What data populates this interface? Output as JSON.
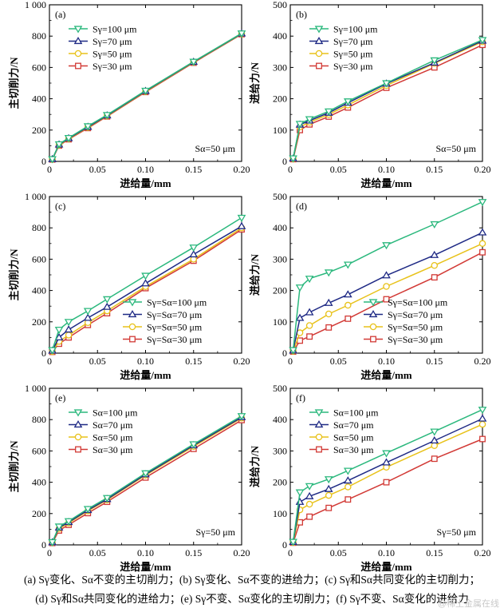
{
  "colors": {
    "s100": "#2bb87d",
    "s70": "#1f2a85",
    "s50": "#e8c21a",
    "s30": "#d23a36",
    "axis": "#000000"
  },
  "chart_data": [
    {
      "id": "a",
      "type": "line",
      "panel_label": "(a)",
      "xlabel": "进给量/mm",
      "ylabel": "主切削力/N",
      "xlim": [
        0,
        0.2
      ],
      "ylim": [
        0,
        1000
      ],
      "xticks": [
        "0",
        "0.05",
        "0.10",
        "0.15",
        "0.20"
      ],
      "yticks": [
        "0",
        "200",
        "400",
        "600",
        "800",
        "1 000"
      ],
      "x": [
        0.003,
        0.01,
        0.02,
        0.04,
        0.06,
        0.1,
        0.15,
        0.2
      ],
      "note": "Sα=50 μm",
      "legend_position": "top-left",
      "series": [
        {
          "key": "s100",
          "name": "Sγ=100 μm",
          "marker": "tri-down",
          "values": [
            15,
            110,
            150,
            225,
            297,
            452,
            637,
            818
          ]
        },
        {
          "key": "s70",
          "name": "Sγ=70 μm",
          "marker": "tri-up",
          "values": [
            14,
            107,
            147,
            220,
            293,
            449,
            635,
            816
          ]
        },
        {
          "key": "s50",
          "name": "Sγ=50 μm",
          "marker": "circle",
          "values": [
            13,
            104,
            144,
            217,
            290,
            446,
            633,
            814
          ]
        },
        {
          "key": "s30",
          "name": "Sγ=30 μm",
          "marker": "square",
          "values": [
            12,
            101,
            141,
            213,
            287,
            443,
            630,
            812
          ]
        }
      ]
    },
    {
      "id": "b",
      "type": "line",
      "panel_label": "(b)",
      "xlabel": "进给量/mm",
      "ylabel": "进给力/N",
      "xlim": [
        0,
        0.2
      ],
      "ylim": [
        0,
        500
      ],
      "xticks": [
        "0",
        "0.05",
        "0.10",
        "0.15",
        "0.20"
      ],
      "yticks": [
        "0",
        "100",
        "200",
        "300",
        "400",
        "500"
      ],
      "x": [
        0.003,
        0.01,
        0.02,
        0.04,
        0.06,
        0.1,
        0.15,
        0.2
      ],
      "note": "Sα=50 μm",
      "legend_position": "top-left",
      "series": [
        {
          "key": "s100",
          "name": "Sγ=100 μm",
          "marker": "tri-down",
          "values": [
            10,
            120,
            135,
            160,
            192,
            250,
            323,
            388
          ]
        },
        {
          "key": "s70",
          "name": "Sγ=70 μm",
          "marker": "tri-up",
          "values": [
            9,
            117,
            130,
            155,
            187,
            248,
            315,
            385
          ]
        },
        {
          "key": "s50",
          "name": "Sγ=50 μm",
          "marker": "circle",
          "values": [
            8,
            110,
            125,
            150,
            180,
            242,
            313,
            382
          ]
        },
        {
          "key": "s30",
          "name": "Sγ=30 μm",
          "marker": "square",
          "values": [
            7,
            100,
            118,
            143,
            172,
            235,
            300,
            372
          ]
        }
      ]
    },
    {
      "id": "c",
      "type": "line",
      "panel_label": "(c)",
      "xlabel": "进给量/mm",
      "ylabel": "主切削力/N",
      "xlim": [
        0,
        0.2
      ],
      "ylim": [
        0,
        1000
      ],
      "xticks": [
        "0",
        "0.05",
        "0.10",
        "0.15",
        "0.20"
      ],
      "yticks": [
        "0",
        "200",
        "400",
        "600",
        "800",
        "1 000"
      ],
      "x": [
        0.003,
        0.01,
        0.02,
        0.04,
        0.06,
        0.1,
        0.15,
        0.2
      ],
      "note": "",
      "legend_position": "bottom-right",
      "series": [
        {
          "key": "s100",
          "name": "Sγ=Sα=100 μm",
          "marker": "tri-down",
          "values": [
            20,
            150,
            200,
            270,
            345,
            495,
            675,
            865
          ]
        },
        {
          "key": "s70",
          "name": "Sγ=Sα=70 μm",
          "marker": "tri-up",
          "values": [
            15,
            100,
            150,
            225,
            295,
            445,
            630,
            810
          ]
        },
        {
          "key": "s50",
          "name": "Sγ=Sα=50 μm",
          "marker": "circle",
          "values": [
            10,
            75,
            115,
            195,
            270,
            425,
            600,
            800
          ]
        },
        {
          "key": "s30",
          "name": "Sγ=Sα=30 μm",
          "marker": "square",
          "values": [
            8,
            60,
            100,
            180,
            255,
            415,
            590,
            790
          ]
        }
      ]
    },
    {
      "id": "d",
      "type": "line",
      "panel_label": "(d)",
      "xlabel": "进给量/mm",
      "ylabel": "进给力/N",
      "xlim": [
        0,
        0.2
      ],
      "ylim": [
        0,
        500
      ],
      "xticks": [
        "0",
        "0.05",
        "0.10",
        "0.15",
        "0.20"
      ],
      "yticks": [
        "0",
        "100",
        "200",
        "300",
        "400",
        "500"
      ],
      "x": [
        0.003,
        0.01,
        0.02,
        0.04,
        0.06,
        0.1,
        0.15,
        0.2
      ],
      "note": "",
      "legend_position": "bottom-right",
      "series": [
        {
          "key": "s100",
          "name": "Sγ=Sα=100 μm",
          "marker": "tri-down",
          "values": [
            10,
            210,
            238,
            258,
            283,
            345,
            412,
            483
          ]
        },
        {
          "key": "s70",
          "name": "Sγ=Sα=70 μm",
          "marker": "tri-up",
          "values": [
            8,
            112,
            130,
            160,
            187,
            248,
            313,
            385
          ]
        },
        {
          "key": "s50",
          "name": "Sγ=Sα=50 μm",
          "marker": "circle",
          "values": [
            6,
            65,
            88,
            125,
            153,
            213,
            280,
            350
          ]
        },
        {
          "key": "s30",
          "name": "Sγ=Sα=30 μm",
          "marker": "square",
          "values": [
            5,
            40,
            53,
            82,
            110,
            172,
            242,
            322
          ]
        }
      ]
    },
    {
      "id": "e",
      "type": "line",
      "panel_label": "(e)",
      "xlabel": "进给量/mm",
      "ylabel": "主切削力/N",
      "xlim": [
        0,
        0.2
      ],
      "ylim": [
        0,
        1000
      ],
      "xticks": [
        "0",
        "0.05",
        "0.10",
        "0.15",
        "0.20"
      ],
      "yticks": [
        "0",
        "200",
        "400",
        "600",
        "800",
        "1 000"
      ],
      "x": [
        0.003,
        0.01,
        0.02,
        0.04,
        0.06,
        0.1,
        0.15,
        0.2
      ],
      "note": "Sγ=50 μm",
      "legend_position": "top-left",
      "series": [
        {
          "key": "s100",
          "name": "Sα=100 μm",
          "marker": "tri-down",
          "values": [
            18,
            118,
            152,
            230,
            300,
            458,
            643,
            823
          ]
        },
        {
          "key": "s70",
          "name": "Sα=70 μm",
          "marker": "tri-up",
          "values": [
            16,
            110,
            145,
            222,
            292,
            450,
            635,
            815
          ]
        },
        {
          "key": "s50",
          "name": "Sα=50 μm",
          "marker": "circle",
          "values": [
            14,
            104,
            140,
            217,
            287,
            445,
            628,
            810
          ]
        },
        {
          "key": "s30",
          "name": "Sα=30 μm",
          "marker": "square",
          "values": [
            12,
            92,
            128,
            203,
            275,
            430,
            613,
            797
          ]
        }
      ]
    },
    {
      "id": "f",
      "type": "line",
      "panel_label": "(f)",
      "xlabel": "进给量/mm",
      "ylabel": "进给力/N",
      "xlim": [
        0,
        0.2
      ],
      "ylim": [
        0,
        500
      ],
      "xticks": [
        "0",
        "0.05",
        "0.10",
        "0.15",
        "0.20"
      ],
      "yticks": [
        "0",
        "100",
        "200",
        "300",
        "400",
        "500"
      ],
      "x": [
        0.003,
        0.01,
        0.02,
        0.04,
        0.06,
        0.1,
        0.15,
        0.2
      ],
      "note": "Sγ=50 μm",
      "legend_position": "top-left",
      "series": [
        {
          "key": "s100",
          "name": "Sα=100 μm",
          "marker": "tri-down",
          "values": [
            10,
            168,
            188,
            210,
            237,
            293,
            362,
            432
          ]
        },
        {
          "key": "s70",
          "name": "Sα=70 μm",
          "marker": "tri-up",
          "values": [
            9,
            137,
            155,
            178,
            205,
            263,
            333,
            403
          ]
        },
        {
          "key": "s50",
          "name": "Sα=50 μm",
          "marker": "circle",
          "values": [
            8,
            112,
            130,
            158,
            185,
            248,
            317,
            385
          ]
        },
        {
          "key": "s30",
          "name": "Sα=30 μm",
          "marker": "square",
          "values": [
            7,
            72,
            90,
            118,
            145,
            200,
            275,
            338
          ]
        }
      ]
    }
  ],
  "caption": {
    "line1": "(a) Sγ变化、Sα不变的主切削力；(b) Sγ变化、Sα不变的进给力；(c) Sγ和Sα共同变化的主切削力；",
    "line2": "(d) Sγ和Sα共同变化的进给力；(e) Sγ不变、Sα变化的主切削力；(f) Sγ不变、Sα变化的进给力"
  },
  "watermark": "@稀土金属在线"
}
